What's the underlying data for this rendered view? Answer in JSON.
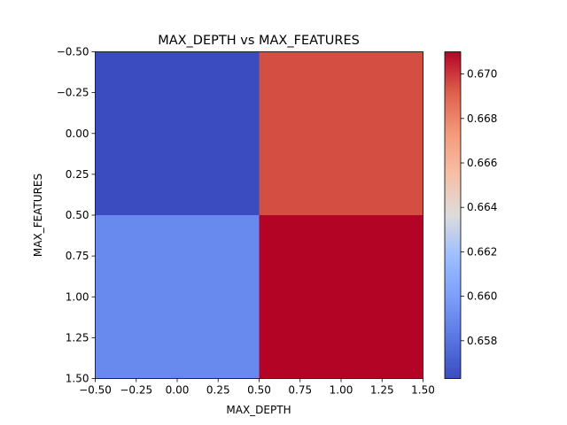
{
  "chart_data": {
    "type": "heatmap",
    "title": "MAX_DEPTH vs MAX_FEATURES",
    "xlabel": "MAX_DEPTH",
    "ylabel": "MAX_FEATURES",
    "xlim": [
      -0.5,
      1.5
    ],
    "ylim": [
      1.5,
      -0.5
    ],
    "x_ticks": [
      "−0.50",
      "−0.25",
      "0.00",
      "0.25",
      "0.50",
      "0.75",
      "1.00",
      "1.25",
      "1.50"
    ],
    "y_ticks": [
      "−0.50",
      "−0.25",
      "0.00",
      "0.25",
      "0.50",
      "0.75",
      "1.00",
      "1.25",
      "1.50"
    ],
    "grid": false,
    "colormap": "coolwarm",
    "color_range": [
      0.6563,
      0.671
    ],
    "colorbar_ticks": [
      "0.658",
      "0.660",
      "0.662",
      "0.664",
      "0.666",
      "0.668",
      "0.670"
    ],
    "cells": [
      {
        "row": 0,
        "col": 0,
        "value": 0.6563,
        "color": "#3b4cc0"
      },
      {
        "row": 0,
        "col": 1,
        "value": 0.6695,
        "color": "#d44e41"
      },
      {
        "row": 1,
        "col": 0,
        "value": 0.6599,
        "color": "#6889ee"
      },
      {
        "row": 1,
        "col": 1,
        "value": 0.671,
        "color": "#b40426"
      }
    ]
  }
}
